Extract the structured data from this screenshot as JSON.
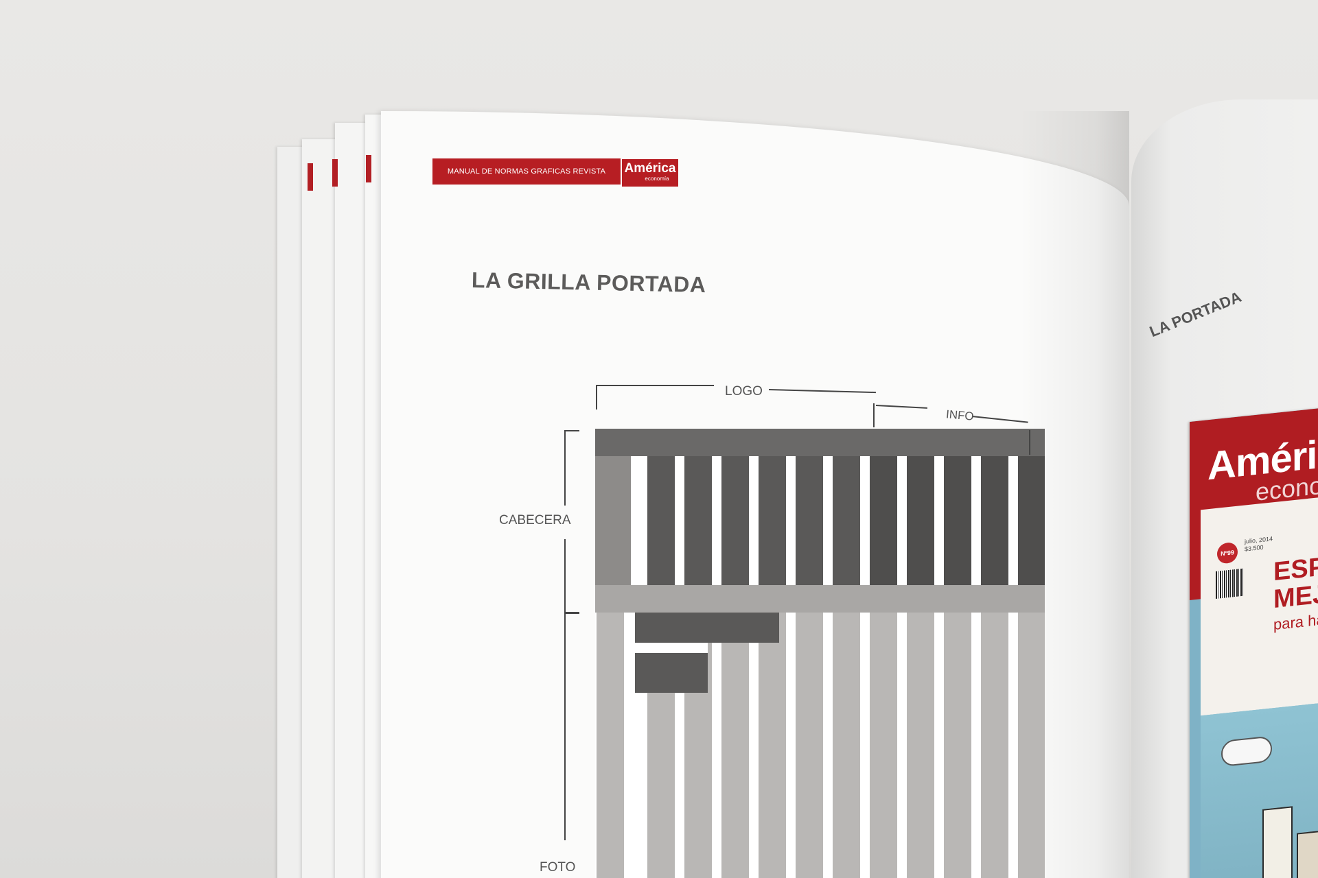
{
  "book": {
    "header_strip": "MANUAL DE NORMAS GRAFICAS REVISTA",
    "brand_main": "América",
    "brand_sub": "economía",
    "page_title": "LA GRILLA PORTADA"
  },
  "diagram": {
    "labels": {
      "logo": "LOGO",
      "info": "INFO",
      "cabecera": "CABECERA",
      "foto": "FOTO"
    }
  },
  "right_page": {
    "running_title": "LA PORTADA",
    "cover": {
      "title": "Améric",
      "subtitle": "econo",
      "issue_badge": "Nº99",
      "date_line1": "julio, 2014",
      "date_line2": "$3.500",
      "headline_line1": "ESP",
      "headline_line2": "MEJ",
      "tagline": "para ha"
    }
  },
  "colors": {
    "brand_red": "#b71e23",
    "grid_dark": "#5a5958",
    "grid_light": "#b9b7b5",
    "background": "#e6e5e3"
  }
}
